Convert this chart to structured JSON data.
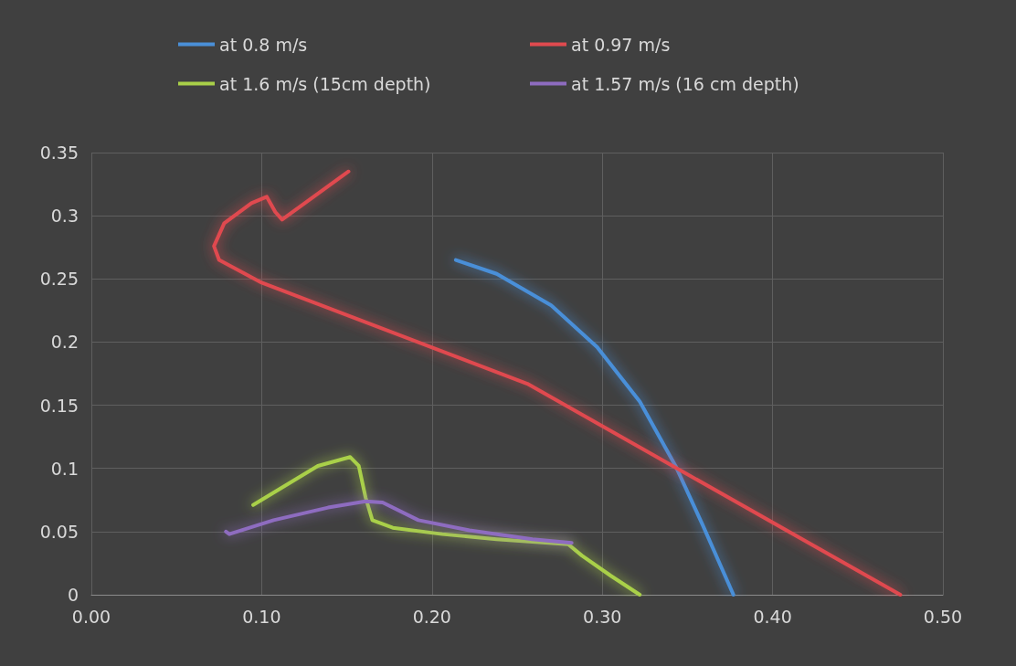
{
  "chart_data": {
    "type": "line",
    "xlim": [
      0,
      0.5
    ],
    "xticks": [
      {
        "value": 0,
        "label": "0.00"
      },
      {
        "value": 0.1,
        "label": "0.10"
      },
      {
        "value": 0.2,
        "label": "0.20"
      },
      {
        "value": 0.3,
        "label": "0.30"
      },
      {
        "value": 0.4,
        "label": "0.40"
      },
      {
        "value": 0.5,
        "label": "0.50"
      }
    ],
    "ylim": [
      0,
      0.35
    ],
    "yticks": [
      0,
      0.05,
      0.1,
      0.15,
      0.2,
      0.25,
      0.3,
      0.35
    ],
    "grid": true,
    "legend": "top",
    "marker": "none",
    "line_style": "solid",
    "series": [
      {
        "name": "at 0.8 m/s",
        "color": "#4a8fd8",
        "x": [
          0.214,
          0.238,
          0.27,
          0.297,
          0.322,
          0.343,
          0.359,
          0.377
        ],
        "values": [
          0.265,
          0.254,
          0.229,
          0.196,
          0.153,
          0.102,
          0.055,
          0
        ]
      },
      {
        "name": "at 0.97 m/s",
        "color": "#e04a4f",
        "x": [
          0.151,
          0.112,
          0.108,
          0.103,
          0.094,
          0.078,
          0.072,
          0.075,
          0.1,
          0.256,
          0.475
        ],
        "values": [
          0.335,
          0.297,
          0.303,
          0.315,
          0.31,
          0.294,
          0.276,
          0.265,
          0.247,
          0.167,
          0
        ]
      },
      {
        "name": "at 1.6 m/s (15cm depth)",
        "color": "#a9d049",
        "x": [
          0.095,
          0.133,
          0.152,
          0.157,
          0.161,
          0.165,
          0.177,
          0.206,
          0.238,
          0.28,
          0.288,
          0.305,
          0.322
        ],
        "values": [
          0.071,
          0.102,
          0.109,
          0.102,
          0.077,
          0.059,
          0.053,
          0.048,
          0.044,
          0.04,
          0.031,
          0.015,
          0
        ]
      },
      {
        "name": "at 1.57 m/s (16 cm depth)",
        "color": "#8e6cc0",
        "x": [
          0.079,
          0.081,
          0.107,
          0.139,
          0.161,
          0.171,
          0.192,
          0.222,
          0.259,
          0.282
        ],
        "values": [
          0.05,
          0.048,
          0.059,
          0.069,
          0.074,
          0.073,
          0.059,
          0.051,
          0.044,
          0.041
        ]
      }
    ]
  }
}
